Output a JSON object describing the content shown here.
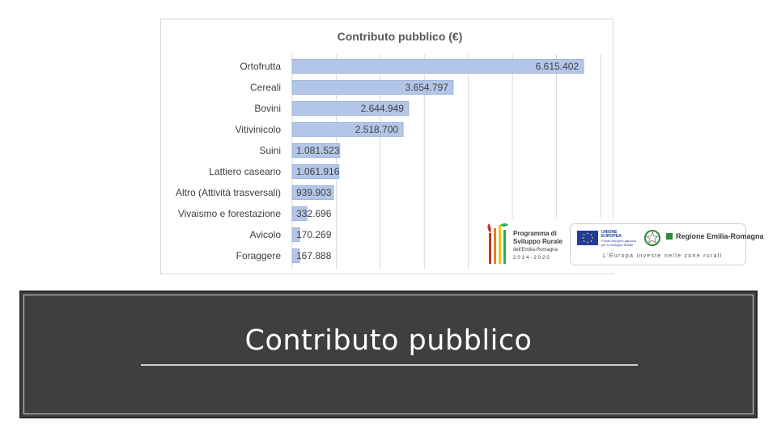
{
  "slide": {
    "title": "Contributo pubblico"
  },
  "colors": {
    "bar_fill": "#b4c6e7",
    "bar_stroke": "#8faadc",
    "title_box_bg": "#3f3f3f",
    "gridline": "#d9d9d9"
  },
  "chart_data": {
    "type": "bar",
    "orientation": "horizontal",
    "title": "Contributo pubblico (€)",
    "xlabel": "",
    "ylabel": "",
    "xlim": [
      0,
      7000000
    ],
    "grid": true,
    "legend": "none",
    "categories": [
      "Ortofrutta",
      "Cereali",
      "Bovini",
      "Vitivinicolo",
      "Suini",
      "Lattiero caseario",
      "Altro (Attività trasversali)",
      "Vivaismo e forestazione",
      "Avicolo",
      "Foraggere"
    ],
    "values": [
      6615402,
      3654797,
      2644949,
      2518700,
      1081523,
      1061916,
      939903,
      332696,
      170269,
      167888
    ],
    "value_labels": [
      "6.615.402",
      "3.654.797",
      "2.644.949",
      "2.518.700",
      "1.081.523",
      "1.061.916",
      "939.903",
      "332.696",
      "170.269",
      "167.888"
    ]
  },
  "logos": {
    "psr_line1": "Programma di",
    "psr_line2": "Sviluppo Rurale",
    "psr_line3": "dell'Emilia-Romagna",
    "psr_years": "2014-2020",
    "eu_line1": "UNIONE EUROPEA",
    "eu_line2": "Fondo Europeo Agricolo",
    "eu_line3": "per lo Sviluppo Rurale",
    "region_name": "Regione Emilia-Romagna",
    "motto": "L'Europa investe nelle zone rurali"
  }
}
